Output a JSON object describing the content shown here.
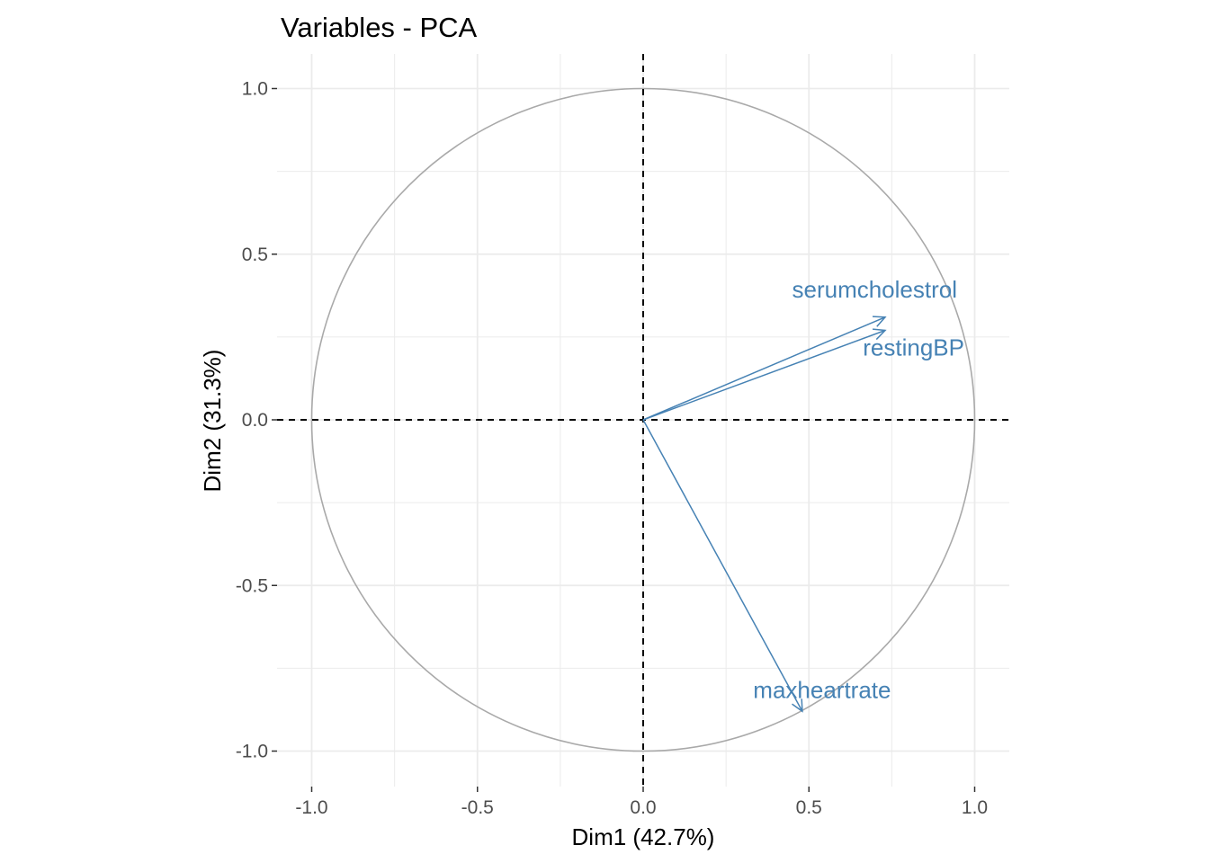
{
  "chart_data": {
    "type": "scatter",
    "title": "Variables - PCA",
    "xlabel": "Dim1 (42.7%)",
    "ylabel": "Dim2 (31.3%)",
    "xlim": [
      -1.1,
      1.1
    ],
    "ylim": [
      -1.1,
      1.1
    ],
    "x_ticks": [
      -1.0,
      -0.5,
      0.0,
      0.5,
      1.0
    ],
    "y_ticks": [
      -1.0,
      -0.5,
      0.0,
      0.5,
      1.0
    ],
    "x_tick_labels": [
      "-1.0",
      "-0.5",
      "0.0",
      "0.5",
      "1.0"
    ],
    "y_tick_labels": [
      "-1.0",
      "-0.5",
      "0.0",
      "0.5",
      "1.0"
    ],
    "grid": true,
    "correlation_circle_radius": 1.0,
    "arrow_color": "#4682b4",
    "circle_color": "#a9a9a9",
    "grid_color": "#ebebeb",
    "variables": [
      {
        "name": "serumcholestrol",
        "x": 0.73,
        "y": 0.31
      },
      {
        "name": "restingBP",
        "x": 0.73,
        "y": 0.27
      },
      {
        "name": "maxheartrate",
        "x": 0.48,
        "y": -0.88
      }
    ]
  }
}
